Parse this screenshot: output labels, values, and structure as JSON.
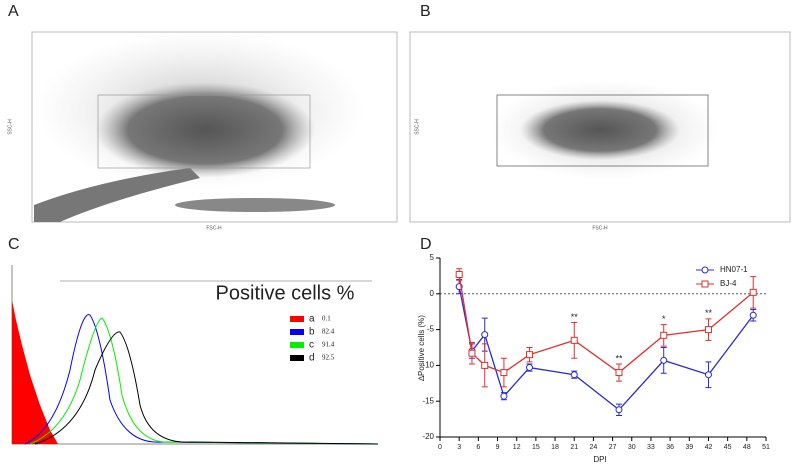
{
  "chart_data": [
    {
      "type": "scatter",
      "label": "A",
      "x_label": "FSC-H",
      "y_label": "SSC-H"
    },
    {
      "type": "scatter",
      "label": "B",
      "x_label": "FSC-H",
      "y_label": "SSC-H"
    },
    {
      "type": "histogram",
      "label": "C",
      "title": "Positive cells %",
      "legend": [
        {
          "name": "a",
          "value": 0.1,
          "color": "#ff0000"
        },
        {
          "name": "b",
          "value": 82.4,
          "color": "#0000ff"
        },
        {
          "name": "c",
          "value": 91.4,
          "color": "#00ee00"
        },
        {
          "name": "d",
          "value": 92.5,
          "color": "#000000"
        }
      ]
    },
    {
      "type": "line",
      "label": "D",
      "x_label": "DPI",
      "y_label": "∆Positive cells (%)",
      "x": [
        3,
        5,
        7,
        10,
        14,
        21,
        28,
        35,
        42,
        49
      ],
      "xlim": [
        0,
        51
      ],
      "xticks": [
        0,
        3,
        6,
        9,
        12,
        15,
        18,
        21,
        24,
        27,
        30,
        33,
        36,
        39,
        42,
        45,
        48,
        51
      ],
      "ylim": [
        -20,
        5
      ],
      "yticks": [
        5,
        0,
        -5,
        -10,
        -15,
        -20
      ],
      "legend_position": "upper right",
      "series": [
        {
          "name": "HN07-1",
          "color": "#2b2bd0",
          "marker": "circle",
          "values": [
            1,
            -8,
            -5.7,
            -14.3,
            -10.3,
            -11.3,
            -16.2,
            -9.3,
            -11.3,
            -3
          ],
          "errors": [
            1,
            1,
            2.3,
            0.5,
            0.5,
            0.5,
            0.8,
            1.8,
            1.8,
            0.8
          ]
        },
        {
          "name": "BJ-4",
          "color": "#e03030",
          "marker": "square",
          "values": [
            2.7,
            -8.3,
            -10,
            -11,
            -8.5,
            -6.5,
            -11,
            -5.8,
            -5,
            0.2
          ],
          "errors": [
            0.8,
            1.5,
            3,
            2,
            1,
            2.5,
            1.2,
            1.5,
            1.5,
            2.2
          ],
          "significance": [
            null,
            null,
            null,
            null,
            null,
            "**",
            "**",
            "*",
            "**",
            null
          ]
        }
      ]
    }
  ]
}
